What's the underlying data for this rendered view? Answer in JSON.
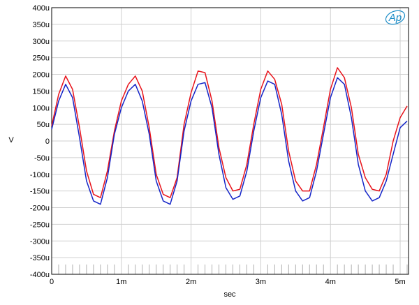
{
  "chart_data": {
    "type": "line",
    "title": "",
    "xlabel": "sec",
    "ylabel": "V",
    "xlim": [
      0,
      0.00512
    ],
    "ylim": [
      -0.0004,
      0.0004
    ],
    "grid": true,
    "logo_text": "Ap",
    "x_ticks": [
      {
        "value": 0,
        "label": "0"
      },
      {
        "value": 0.001,
        "label": "1m"
      },
      {
        "value": 0.002,
        "label": "2m"
      },
      {
        "value": 0.003,
        "label": "3m"
      },
      {
        "value": 0.004,
        "label": "4m"
      },
      {
        "value": 0.005,
        "label": "5m"
      }
    ],
    "y_ticks": [
      {
        "value": 0.0004,
        "label": "400u"
      },
      {
        "value": 0.00035,
        "label": "350u"
      },
      {
        "value": 0.0003,
        "label": "300u"
      },
      {
        "value": 0.00025,
        "label": "250u"
      },
      {
        "value": 0.0002,
        "label": "200u"
      },
      {
        "value": 0.00015,
        "label": "150u"
      },
      {
        "value": 0.0001,
        "label": "100u"
      },
      {
        "value": 5e-05,
        "label": "50u"
      },
      {
        "value": 0,
        "label": "0"
      },
      {
        "value": -5e-05,
        "label": "-50u"
      },
      {
        "value": -0.0001,
        "label": "-100u"
      },
      {
        "value": -0.00015,
        "label": "-150u"
      },
      {
        "value": -0.0002,
        "label": "-200u"
      },
      {
        "value": -0.00025,
        "label": "-250u"
      },
      {
        "value": -0.0003,
        "label": "-300u"
      },
      {
        "value": -0.00035,
        "label": "-350u"
      },
      {
        "value": -0.0004,
        "label": "-400u"
      }
    ],
    "series": [
      {
        "color": "#e8131b",
        "x": [
          0,
          0.0001,
          0.0002,
          0.0003,
          0.0004,
          0.0005,
          0.0006,
          0.0007,
          0.0008,
          0.0009,
          0.001,
          0.0011,
          0.0012,
          0.0013,
          0.0014,
          0.0015,
          0.0016,
          0.0017,
          0.0018,
          0.0019,
          0.002,
          0.0021,
          0.0022,
          0.0023,
          0.0024,
          0.0025,
          0.0026,
          0.0027,
          0.0028,
          0.0029,
          0.003,
          0.0031,
          0.0032,
          0.0033,
          0.0034,
          0.0035,
          0.0036,
          0.0037,
          0.0038,
          0.0039,
          0.004,
          0.0041,
          0.0042,
          0.0043,
          0.0044,
          0.0045,
          0.0046,
          0.0047,
          0.0048,
          0.0049,
          0.005,
          0.0051
        ],
        "values": [
          4.5e-05,
          0.00014,
          0.000195,
          0.000155,
          4e-05,
          -9e-05,
          -0.00016,
          -0.00017,
          -9e-05,
          3e-05,
          0.00012,
          0.00017,
          0.000195,
          0.00015,
          4e-05,
          -0.0001,
          -0.00016,
          -0.00017,
          -0.00011,
          5e-05,
          0.000145,
          0.00021,
          0.000205,
          0.00012,
          -2e-05,
          -0.00011,
          -0.00015,
          -0.000145,
          -7e-05,
          5e-05,
          0.000155,
          0.00021,
          0.000185,
          0.00011,
          -3e-05,
          -0.00012,
          -0.00015,
          -0.00015,
          -7e-05,
          4e-05,
          0.000155,
          0.00022,
          0.00019,
          0.0001,
          -4e-05,
          -0.00011,
          -0.000145,
          -0.00015,
          -0.0001,
          0.0,
          7e-05,
          0.000105
        ]
      },
      {
        "color": "#1525c8",
        "x": [
          0,
          0.0001,
          0.0002,
          0.0003,
          0.0004,
          0.0005,
          0.0006,
          0.0007,
          0.0008,
          0.0009,
          0.001,
          0.0011,
          0.0012,
          0.0013,
          0.0014,
          0.0015,
          0.0016,
          0.0017,
          0.0018,
          0.0019,
          0.002,
          0.0021,
          0.0022,
          0.0023,
          0.0024,
          0.0025,
          0.0026,
          0.0027,
          0.0028,
          0.0029,
          0.003,
          0.0031,
          0.0032,
          0.0033,
          0.0034,
          0.0035,
          0.0036,
          0.0037,
          0.0038,
          0.0039,
          0.004,
          0.0041,
          0.0042,
          0.0043,
          0.0044,
          0.0045,
          0.0046,
          0.0047,
          0.0048,
          0.0049,
          0.005,
          0.0051
        ],
        "values": [
          3.5e-05,
          0.00012,
          0.00017,
          0.00013,
          1e-05,
          -0.00012,
          -0.00018,
          -0.00019,
          -0.00011,
          2e-05,
          0.0001,
          0.00015,
          0.00017,
          0.00012,
          2e-05,
          -0.00012,
          -0.00018,
          -0.00019,
          -0.00012,
          3e-05,
          0.00012,
          0.00017,
          0.000175,
          0.0001,
          -4e-05,
          -0.00014,
          -0.000175,
          -0.000165,
          -9e-05,
          3e-05,
          0.00013,
          0.00018,
          0.00017,
          8e-05,
          -6e-05,
          -0.00015,
          -0.00018,
          -0.00017,
          -9e-05,
          2e-05,
          0.00013,
          0.00019,
          0.00017,
          7e-05,
          -7e-05,
          -0.00015,
          -0.00018,
          -0.00017,
          -0.00012,
          -4e-05,
          4e-05,
          6e-05
        ]
      }
    ]
  }
}
